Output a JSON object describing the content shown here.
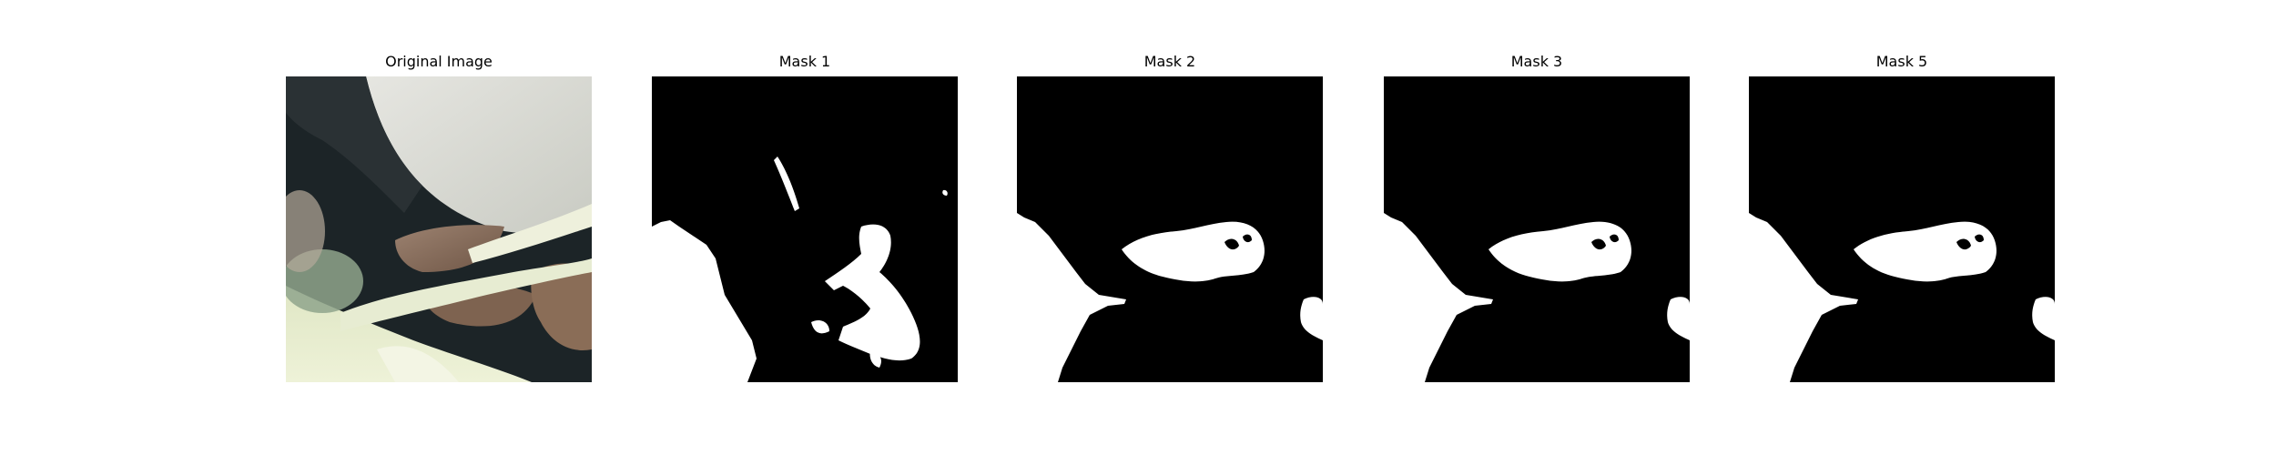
{
  "figure": {
    "panels": [
      {
        "title": "Original Image",
        "kind": "photo"
      },
      {
        "title": "Mask 1",
        "kind": "mask"
      },
      {
        "title": "Mask 2",
        "kind": "mask"
      },
      {
        "title": "Mask 3",
        "kind": "mask"
      },
      {
        "title": "Mask 5",
        "kind": "mask"
      }
    ],
    "colors": {
      "mask_background": "#000000",
      "mask_foreground": "#ffffff",
      "page_background": "#ffffff"
    }
  }
}
